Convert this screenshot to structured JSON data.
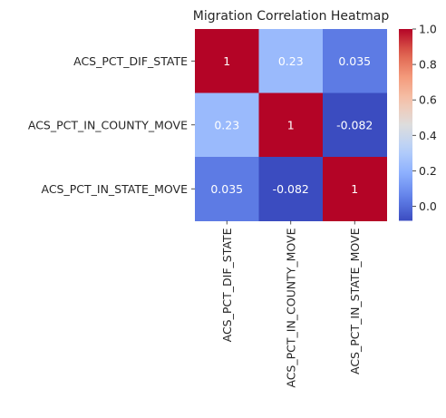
{
  "chart_data": {
    "type": "heatmap",
    "title": "Migration Correlation Heatmap",
    "xlabel": "",
    "ylabel": "",
    "row_labels": [
      "ACS_PCT_DIF_STATE",
      "ACS_PCT_IN_COUNTY_MOVE",
      "ACS_PCT_IN_STATE_MOVE"
    ],
    "col_labels": [
      "ACS_PCT_DIF_STATE",
      "ACS_PCT_IN_COUNTY_MOVE",
      "ACS_PCT_IN_STATE_MOVE"
    ],
    "values": [
      [
        1,
        0.23,
        0.035
      ],
      [
        0.23,
        1,
        -0.082
      ],
      [
        0.035,
        -0.082,
        1
      ]
    ],
    "cell_text": [
      [
        "1",
        "0.23",
        "0.035"
      ],
      [
        "0.23",
        "1",
        "-0.082"
      ],
      [
        "0.035",
        "-0.082",
        "1"
      ]
    ],
    "colormap": "coolwarm",
    "colorbar": {
      "range": [
        -0.082,
        1.0
      ],
      "ticks": [
        0.0,
        0.2,
        0.4,
        0.6,
        0.8,
        1.0
      ],
      "tick_labels": [
        "0.0",
        "0.2",
        "0.4",
        "0.6",
        "0.8",
        "1.0"
      ]
    },
    "grid": false,
    "legend": "none"
  }
}
